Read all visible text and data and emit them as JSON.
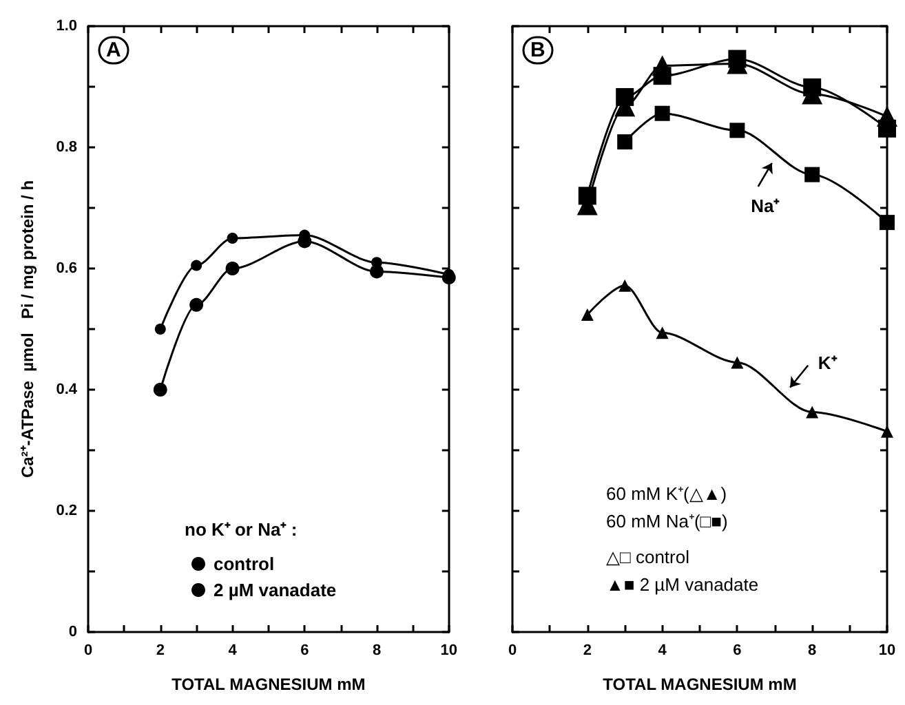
{
  "chart_data": [
    {
      "type": "line",
      "title": "A",
      "xlabel": "TOTAL MAGNESIUM mM",
      "ylabel": "Ca²⁺-ATPase  µmol   Pi / mg protein / h",
      "legend_title": "no K⁺ or Na⁺ :",
      "legend": "bottom",
      "x": [
        2,
        3,
        4,
        6,
        8,
        10
      ],
      "series": [
        {
          "name": "control",
          "color": "#000000",
          "marker": "circle",
          "values": [
            0.4,
            0.54,
            0.6,
            0.645,
            0.595,
            0.585
          ]
        },
        {
          "name": "2 µM vanadate",
          "color": "#000000",
          "marker": "circle",
          "values": [
            0.5,
            0.605,
            0.65,
            0.655,
            0.61,
            0.59
          ]
        }
      ],
      "xlim": [
        0,
        10
      ],
      "xticks": [
        0,
        {
          "value": 1,
          "label": null
        },
        2,
        {
          "value": 3,
          "label": null
        },
        4,
        {
          "value": 5,
          "label": null
        },
        6,
        {
          "value": 7,
          "label": null
        },
        8,
        {
          "value": 9,
          "label": null
        },
        10
      ],
      "ylim": [
        0,
        1
      ],
      "yticks": [
        0,
        {
          "value": 0.1,
          "label": null
        },
        0.2,
        {
          "value": 0.3,
          "label": null
        },
        0.4,
        {
          "value": 0.5,
          "label": null
        },
        0.6,
        {
          "value": 0.7,
          "label": null
        },
        0.8,
        {
          "value": 0.9,
          "label": null
        },
        {
          "value": 1,
          "label": "1.0"
        }
      ],
      "grid": false
    },
    {
      "type": "line",
      "title": "B",
      "xlabel": "TOTAL MAGNESIUM mM",
      "legend": false,
      "tick_labels": "x",
      "x": [
        2,
        3,
        4,
        6,
        8,
        10
      ],
      "series": [
        {
          "color": "#000000",
          "marker": "triangle",
          "values": [
            0.705,
            0.868,
            0.935,
            0.938,
            0.888,
            0.851
          ]
        },
        {
          "color": "#000000",
          "marker": "square",
          "values": [
            0.72,
            0.883,
            0.918,
            0.946,
            0.899,
            0.831
          ]
        },
        {
          "color": "#000000",
          "marker": "square",
          "values": [
            null,
            0.809,
            0.856,
            0.828,
            0.755,
            0.676
          ]
        },
        {
          "color": "#000000",
          "marker": "triangle",
          "values": [
            0.524,
            0.572,
            0.494,
            0.445,
            0.363,
            0.331
          ]
        }
      ],
      "annotations": [
        {
          "text": "Na⁺",
          "x": 7.0,
          "y": 0.79
        },
        {
          "text": "K⁺",
          "x": 7.3,
          "y": 0.39
        },
        "60 mM K⁺(△▲)",
        "60 mM Na⁺(□■)",
        "△□ control",
        "▲■ 2 µM vanadate"
      ],
      "xlim": [
        0,
        10
      ],
      "xticks": [
        0,
        {
          "value": 1,
          "label": null
        },
        2,
        {
          "value": 3,
          "label": null
        },
        4,
        {
          "value": 5,
          "label": null
        },
        6,
        {
          "value": 7,
          "label": null
        },
        8,
        {
          "value": 9,
          "label": null
        },
        10
      ],
      "ylim": [
        0,
        1
      ],
      "yticks": [
        0,
        {
          "value": 0.1,
          "label": null
        },
        0.2,
        {
          "value": 0.3,
          "label": null
        },
        0.4,
        {
          "value": 0.5,
          "label": null
        },
        0.6,
        {
          "value": 0.7,
          "label": null
        },
        0.8,
        {
          "value": 0.9,
          "label": null
        },
        1
      ],
      "grid": false
    }
  ]
}
